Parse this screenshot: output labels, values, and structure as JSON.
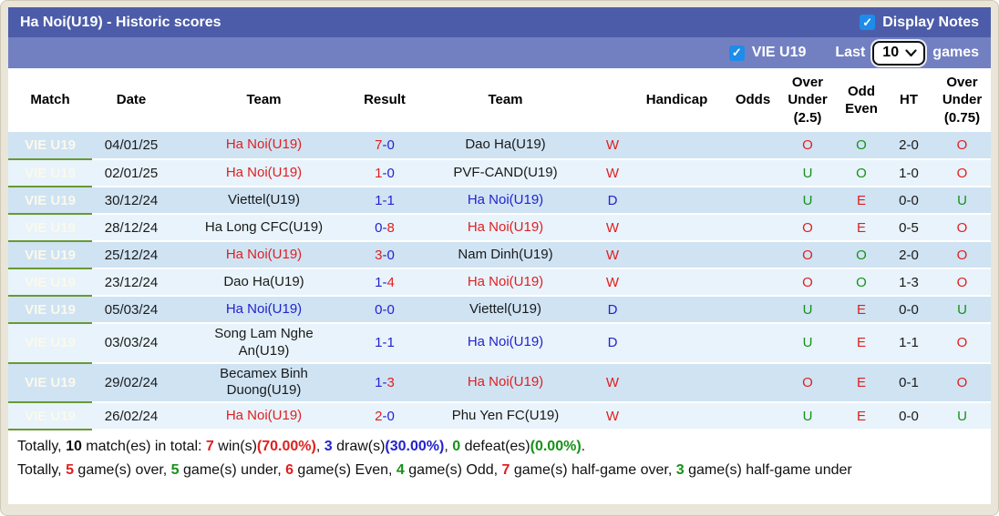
{
  "colors": {
    "red": "#e01f1f",
    "blue": "#2323cd",
    "green": "#179117",
    "black": "#1a1a1a",
    "accent_bar": "#4c5ca9",
    "filter_bar": "#7280c2",
    "match_green": "#7dac41",
    "checkbox_blue": "#1e8ceb"
  },
  "title_bar": {
    "title": "Ha Noi(U19) - Historic scores",
    "display_notes_label": "Display Notes",
    "display_notes_checked": true,
    "check_glyph": "✓"
  },
  "filter_bar": {
    "league_label": "VIE U19",
    "league_checked": true,
    "last_label": "Last",
    "games_count": "10",
    "games_label": "games",
    "check_glyph": "✓"
  },
  "table": {
    "headers": [
      "Match",
      "Date",
      "Team",
      "Result",
      "Team",
      "",
      "Handicap",
      "Odds",
      "Over Under (2.5)",
      "Odd Even",
      "HT",
      "Over Under (0.75)"
    ],
    "rows": [
      {
        "match": "VIE U19",
        "date": "04/01/25",
        "home": {
          "name": "Ha Noi(U19)",
          "color": "red"
        },
        "score": {
          "home": "7",
          "home_color": "red",
          "away": "0",
          "away_color": "blue"
        },
        "away": {
          "name": "Dao Ha(U19)",
          "color": "black"
        },
        "outcome": {
          "text": "W",
          "color": "red"
        },
        "handicap": "",
        "odds": "",
        "ou25": {
          "text": "O",
          "color": "red"
        },
        "oddeven": {
          "text": "O",
          "color": "green"
        },
        "ht": "2-0",
        "ou075": {
          "text": "O",
          "color": "red"
        }
      },
      {
        "match": "VIE U19",
        "date": "02/01/25",
        "home": {
          "name": "Ha Noi(U19)",
          "color": "red"
        },
        "score": {
          "home": "1",
          "home_color": "red",
          "away": "0",
          "away_color": "blue"
        },
        "away": {
          "name": "PVF-CAND(U19)",
          "color": "black"
        },
        "outcome": {
          "text": "W",
          "color": "red"
        },
        "handicap": "",
        "odds": "",
        "ou25": {
          "text": "U",
          "color": "green"
        },
        "oddeven": {
          "text": "O",
          "color": "green"
        },
        "ht": "1-0",
        "ou075": {
          "text": "O",
          "color": "red"
        }
      },
      {
        "match": "VIE U19",
        "date": "30/12/24",
        "home": {
          "name": "Viettel(U19)",
          "color": "black"
        },
        "score": {
          "home": "1",
          "home_color": "blue",
          "away": "1",
          "away_color": "blue"
        },
        "away": {
          "name": "Ha Noi(U19)",
          "color": "blue"
        },
        "outcome": {
          "text": "D",
          "color": "blue"
        },
        "handicap": "",
        "odds": "",
        "ou25": {
          "text": "U",
          "color": "green"
        },
        "oddeven": {
          "text": "E",
          "color": "red"
        },
        "ht": "0-0",
        "ou075": {
          "text": "U",
          "color": "green"
        }
      },
      {
        "match": "VIE U19",
        "date": "28/12/24",
        "home": {
          "name": "Ha Long CFC(U19)",
          "color": "black"
        },
        "score": {
          "home": "0",
          "home_color": "blue",
          "away": "8",
          "away_color": "red"
        },
        "away": {
          "name": "Ha Noi(U19)",
          "color": "red"
        },
        "outcome": {
          "text": "W",
          "color": "red"
        },
        "handicap": "",
        "odds": "",
        "ou25": {
          "text": "O",
          "color": "red"
        },
        "oddeven": {
          "text": "E",
          "color": "red"
        },
        "ht": "0-5",
        "ou075": {
          "text": "O",
          "color": "red"
        }
      },
      {
        "match": "VIE U19",
        "date": "25/12/24",
        "home": {
          "name": "Ha Noi(U19)",
          "color": "red"
        },
        "score": {
          "home": "3",
          "home_color": "red",
          "away": "0",
          "away_color": "blue"
        },
        "away": {
          "name": "Nam Dinh(U19)",
          "color": "black"
        },
        "outcome": {
          "text": "W",
          "color": "red"
        },
        "handicap": "",
        "odds": "",
        "ou25": {
          "text": "O",
          "color": "red"
        },
        "oddeven": {
          "text": "O",
          "color": "green"
        },
        "ht": "2-0",
        "ou075": {
          "text": "O",
          "color": "red"
        }
      },
      {
        "match": "VIE U19",
        "date": "23/12/24",
        "home": {
          "name": "Dao Ha(U19)",
          "color": "black"
        },
        "score": {
          "home": "1",
          "home_color": "blue",
          "away": "4",
          "away_color": "red"
        },
        "away": {
          "name": "Ha Noi(U19)",
          "color": "red"
        },
        "outcome": {
          "text": "W",
          "color": "red"
        },
        "handicap": "",
        "odds": "",
        "ou25": {
          "text": "O",
          "color": "red"
        },
        "oddeven": {
          "text": "O",
          "color": "green"
        },
        "ht": "1-3",
        "ou075": {
          "text": "O",
          "color": "red"
        }
      },
      {
        "match": "VIE U19",
        "date": "05/03/24",
        "home": {
          "name": "Ha Noi(U19)",
          "color": "blue"
        },
        "score": {
          "home": "0",
          "home_color": "blue",
          "away": "0",
          "away_color": "blue"
        },
        "away": {
          "name": "Viettel(U19)",
          "color": "black"
        },
        "outcome": {
          "text": "D",
          "color": "blue"
        },
        "handicap": "",
        "odds": "",
        "ou25": {
          "text": "U",
          "color": "green"
        },
        "oddeven": {
          "text": "E",
          "color": "red"
        },
        "ht": "0-0",
        "ou075": {
          "text": "U",
          "color": "green"
        }
      },
      {
        "match": "VIE U19",
        "date": "03/03/24",
        "home": {
          "name": "Song Lam Nghe An(U19)",
          "color": "black"
        },
        "score": {
          "home": "1",
          "home_color": "blue",
          "away": "1",
          "away_color": "blue"
        },
        "away": {
          "name": "Ha Noi(U19)",
          "color": "blue"
        },
        "outcome": {
          "text": "D",
          "color": "blue"
        },
        "handicap": "",
        "odds": "",
        "ou25": {
          "text": "U",
          "color": "green"
        },
        "oddeven": {
          "text": "E",
          "color": "red"
        },
        "ht": "1-1",
        "ou075": {
          "text": "O",
          "color": "red"
        }
      },
      {
        "match": "VIE U19",
        "date": "29/02/24",
        "home": {
          "name": "Becamex Binh Duong(U19)",
          "color": "black"
        },
        "score": {
          "home": "1",
          "home_color": "blue",
          "away": "3",
          "away_color": "red"
        },
        "away": {
          "name": "Ha Noi(U19)",
          "color": "red"
        },
        "outcome": {
          "text": "W",
          "color": "red"
        },
        "handicap": "",
        "odds": "",
        "ou25": {
          "text": "O",
          "color": "red"
        },
        "oddeven": {
          "text": "E",
          "color": "red"
        },
        "ht": "0-1",
        "ou075": {
          "text": "O",
          "color": "red"
        }
      },
      {
        "match": "VIE U19",
        "date": "26/02/24",
        "home": {
          "name": "Ha Noi(U19)",
          "color": "red"
        },
        "score": {
          "home": "2",
          "home_color": "red",
          "away": "0",
          "away_color": "blue"
        },
        "away": {
          "name": "Phu Yen FC(U19)",
          "color": "black"
        },
        "outcome": {
          "text": "W",
          "color": "red"
        },
        "handicap": "",
        "odds": "",
        "ou25": {
          "text": "U",
          "color": "green"
        },
        "oddeven": {
          "text": "E",
          "color": "red"
        },
        "ht": "0-0",
        "ou075": {
          "text": "U",
          "color": "green"
        }
      }
    ],
    "score_dash": "-",
    "score_dash_color": "blue"
  },
  "footer": {
    "lines": [
      [
        {
          "t": "Totally, "
        },
        {
          "t": "10",
          "b": true
        },
        {
          "t": " match(es) in total: "
        },
        {
          "t": "7",
          "c": "red",
          "b": true
        },
        {
          "t": " win(s)"
        },
        {
          "t": "(70.00%)",
          "c": "red",
          "b": true
        },
        {
          "t": ", "
        },
        {
          "t": "3",
          "c": "blue",
          "b": true
        },
        {
          "t": " draw(s)"
        },
        {
          "t": "(30.00%)",
          "c": "blue",
          "b": true
        },
        {
          "t": ", "
        },
        {
          "t": "0",
          "c": "green",
          "b": true
        },
        {
          "t": " defeat(es)"
        },
        {
          "t": "(0.00%)",
          "c": "green",
          "b": true
        },
        {
          "t": "."
        }
      ],
      [
        {
          "t": "Totally, "
        },
        {
          "t": "5",
          "c": "red",
          "b": true
        },
        {
          "t": " game(s) over, "
        },
        {
          "t": "5",
          "c": "green",
          "b": true
        },
        {
          "t": " game(s) under, "
        },
        {
          "t": "6",
          "c": "red",
          "b": true
        },
        {
          "t": " game(s) Even, "
        },
        {
          "t": "4",
          "c": "green",
          "b": true
        },
        {
          "t": " game(s) Odd, "
        },
        {
          "t": "7",
          "c": "red",
          "b": true
        },
        {
          "t": " game(s) half-game over, "
        },
        {
          "t": "3",
          "c": "green",
          "b": true
        },
        {
          "t": " game(s) half-game under"
        }
      ]
    ]
  }
}
